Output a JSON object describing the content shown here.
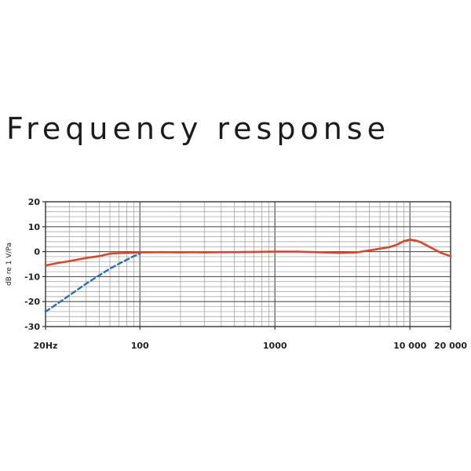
{
  "title": "Frequency response",
  "chart_data": {
    "type": "line",
    "title": "Frequency response",
    "xlabel": "",
    "ylabel": "dB re 1 V/Pa",
    "xscale": "log",
    "xlim": [
      20,
      20000
    ],
    "ylim": [
      -30,
      20
    ],
    "grid": true,
    "x_ticks": [
      {
        "value": 20,
        "label": "20Hz"
      },
      {
        "value": 100,
        "label": "100"
      },
      {
        "value": 1000,
        "label": "1000"
      },
      {
        "value": 10000,
        "label": "10 000"
      },
      {
        "value": 20000,
        "label": "20 000"
      }
    ],
    "y_ticks": [
      {
        "value": 20,
        "label": "20"
      },
      {
        "value": 10,
        "label": "10"
      },
      {
        "value": 0,
        "label": "0"
      },
      {
        "value": -10,
        "label": "-10"
      },
      {
        "value": -20,
        "label": "-20"
      },
      {
        "value": -30,
        "label": "-30"
      }
    ],
    "series": [
      {
        "style": "solid",
        "color": "#d9472b",
        "x": [
          20,
          25,
          30,
          40,
          50,
          60,
          70,
          80,
          100,
          150,
          200,
          250,
          300,
          400,
          500,
          700,
          1000,
          1500,
          2000,
          3000,
          4000,
          5000,
          6000,
          7000,
          8000,
          9000,
          10000,
          11000,
          12000,
          13000,
          15000,
          17000,
          20000
        ],
        "y": [
          -5.5,
          -4.5,
          -3.8,
          -2.5,
          -1.8,
          -0.8,
          -0.6,
          -0.5,
          -0.3,
          -0.2,
          -0.3,
          -0.2,
          -0.3,
          -0.2,
          -0.2,
          -0.1,
          0,
          0,
          -0.2,
          -0.5,
          -0.3,
          0.5,
          1.2,
          1.8,
          2.8,
          4.2,
          4.8,
          4.5,
          3.8,
          2.8,
          1.0,
          -0.5,
          -1.8
        ]
      },
      {
        "style": "dashed",
        "color": "#2b6cb3",
        "x": [
          20,
          25,
          30,
          40,
          50,
          60,
          70,
          80,
          90,
          100
        ],
        "y": [
          -24,
          -20.5,
          -17.5,
          -12.8,
          -9.5,
          -6.8,
          -4.8,
          -3.2,
          -1.8,
          -0.8
        ]
      }
    ]
  }
}
